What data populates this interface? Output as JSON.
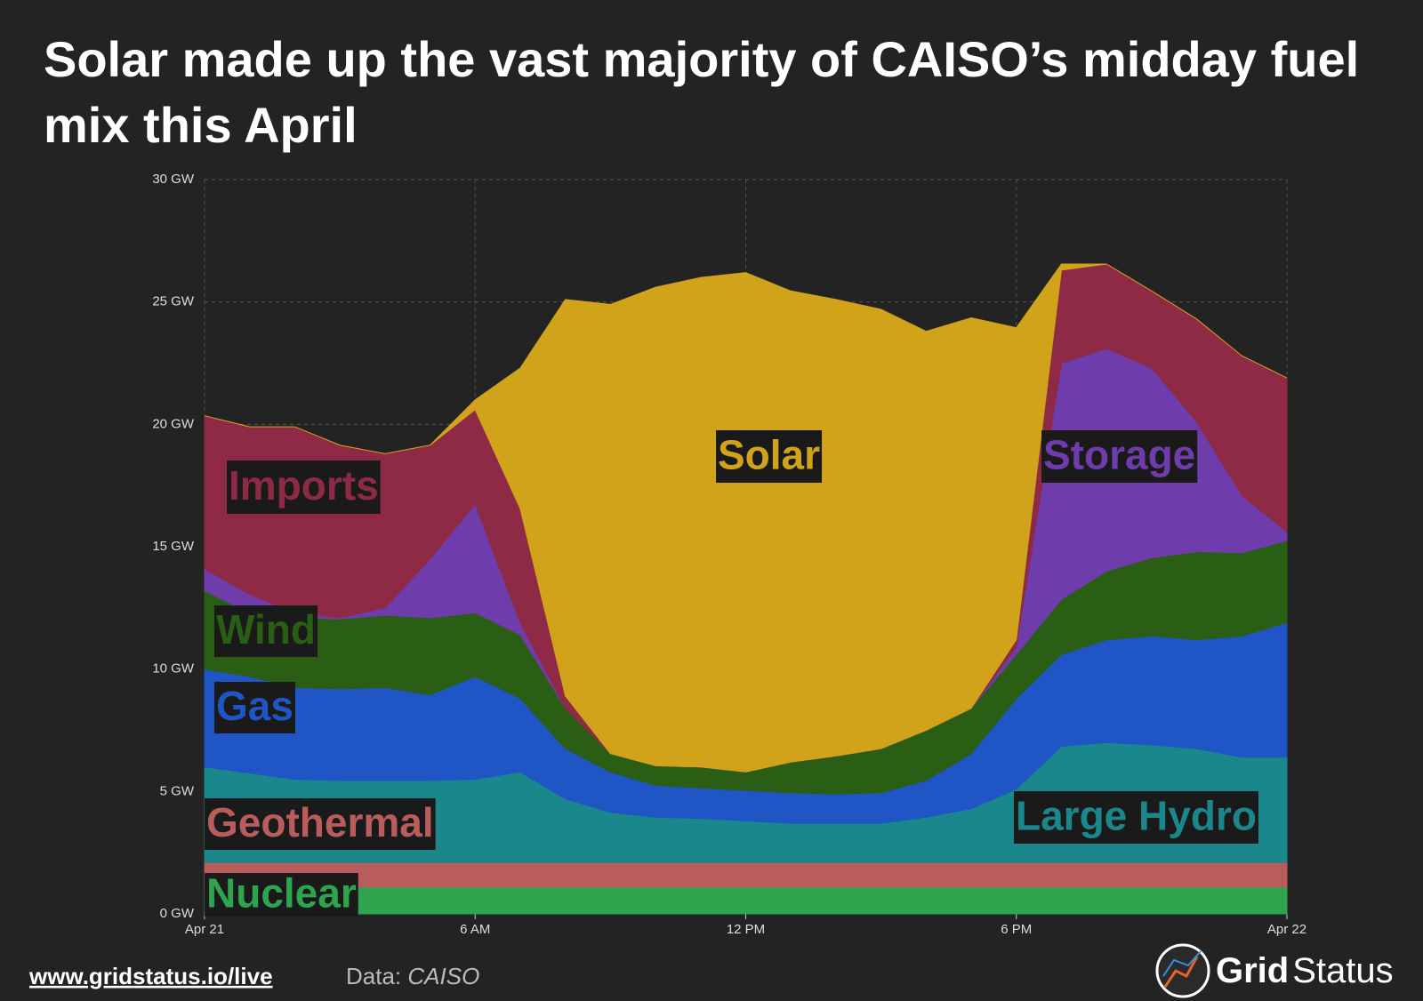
{
  "chart_data": {
    "type": "stacked-area",
    "title": "Solar made up the vast majority of CAISO’s midday fuel mix this April",
    "x": [
      0,
      1,
      2,
      3,
      4,
      5,
      6,
      7,
      8,
      9,
      10,
      11,
      12,
      13,
      14,
      15,
      16,
      17,
      18,
      19,
      20,
      21,
      22,
      23,
      24
    ],
    "xlim": [
      0,
      24
    ],
    "xticks": [
      {
        "value": 0,
        "label": "Apr 21"
      },
      {
        "value": 6,
        "label": "6 AM"
      },
      {
        "value": 12,
        "label": "12 PM"
      },
      {
        "value": 18,
        "label": "6 PM"
      },
      {
        "value": 24,
        "label": "Apr 22"
      }
    ],
    "ylim": [
      0,
      30
    ],
    "yticks": [
      {
        "value": 0,
        "label": "0 GW"
      },
      {
        "value": 5,
        "label": "5 GW"
      },
      {
        "value": 10,
        "label": "10 GW"
      },
      {
        "value": 15,
        "label": "15 GW"
      },
      {
        "value": 20,
        "label": "20 GW"
      },
      {
        "value": 25,
        "label": "25 GW"
      },
      {
        "value": 30,
        "label": "30 GW"
      }
    ],
    "grid": true,
    "series": [
      {
        "name": "Nuclear",
        "color": "#2ea44f",
        "values": [
          1.1,
          1.1,
          1.1,
          1.1,
          1.1,
          1.1,
          1.1,
          1.1,
          1.1,
          1.1,
          1.1,
          1.1,
          1.1,
          1.1,
          1.1,
          1.1,
          1.1,
          1.1,
          1.1,
          1.1,
          1.1,
          1.1,
          1.1,
          1.1,
          1.1
        ]
      },
      {
        "name": "Geothermal",
        "color": "#b85c5c",
        "values": [
          1.0,
          1.0,
          1.0,
          1.0,
          1.0,
          1.0,
          1.0,
          1.0,
          1.0,
          1.0,
          1.0,
          1.0,
          1.0,
          1.0,
          1.0,
          1.0,
          1.0,
          1.0,
          1.0,
          1.0,
          1.0,
          1.0,
          1.0,
          1.0,
          1.0
        ]
      },
      {
        "name": "Large Hydro",
        "color": "#1a878c",
        "values": [
          3.9,
          3.65,
          3.4,
          3.35,
          3.35,
          3.35,
          3.4,
          3.7,
          2.6,
          2.05,
          1.85,
          1.8,
          1.7,
          1.6,
          1.6,
          1.6,
          1.85,
          2.2,
          3.0,
          4.75,
          4.9,
          4.8,
          4.65,
          4.3,
          4.3
        ]
      },
      {
        "name": "Gas",
        "color": "#1f55c4",
        "values": [
          4.0,
          3.95,
          3.75,
          3.75,
          3.8,
          3.5,
          4.2,
          3.0,
          2.05,
          1.65,
          1.3,
          1.25,
          1.25,
          1.25,
          1.2,
          1.25,
          1.5,
          2.25,
          3.7,
          3.75,
          4.2,
          4.45,
          4.45,
          4.95,
          5.5
        ]
      },
      {
        "name": "Wind",
        "color": "#2a5e14",
        "values": [
          3.2,
          2.6,
          2.85,
          2.85,
          2.95,
          3.15,
          2.6,
          2.6,
          1.65,
          0.75,
          0.8,
          0.85,
          0.75,
          1.25,
          1.55,
          1.8,
          2.05,
          1.85,
          1.8,
          2.25,
          2.8,
          3.2,
          3.6,
          3.4,
          3.35
        ]
      },
      {
        "name": "Storage",
        "color": "#6f3cab",
        "values": [
          0.9,
          0.75,
          0.2,
          0.05,
          0.3,
          2.4,
          4.45,
          0.5,
          0,
          0,
          0,
          0,
          0,
          0,
          0,
          0,
          0,
          0,
          0.3,
          9.65,
          9.1,
          7.75,
          5.3,
          2.35,
          0.35
        ]
      },
      {
        "name": "Imports",
        "color": "#8e2a45",
        "values": [
          6.25,
          6.85,
          7.6,
          7.05,
          6.3,
          4.65,
          3.85,
          4.65,
          0.5,
          0,
          0,
          0,
          0,
          0,
          0,
          0,
          0,
          0,
          0.3,
          3.8,
          3.45,
          3.15,
          4.2,
          5.7,
          6.3
        ]
      },
      {
        "name": "Solar",
        "color": "#d1a31a",
        "values": [
          0,
          0,
          0,
          0,
          0,
          0,
          0.4,
          5.75,
          16.2,
          18.35,
          19.55,
          20.0,
          20.4,
          19.25,
          18.65,
          17.95,
          16.3,
          15.95,
          12.75,
          0.25,
          0,
          0,
          0,
          0,
          0
        ]
      }
    ]
  },
  "footer": {
    "link": "www.gridstatus.io/live",
    "source_label": "Data:",
    "source": "CAISO",
    "brand_bold": "Grid",
    "brand": "Status"
  }
}
